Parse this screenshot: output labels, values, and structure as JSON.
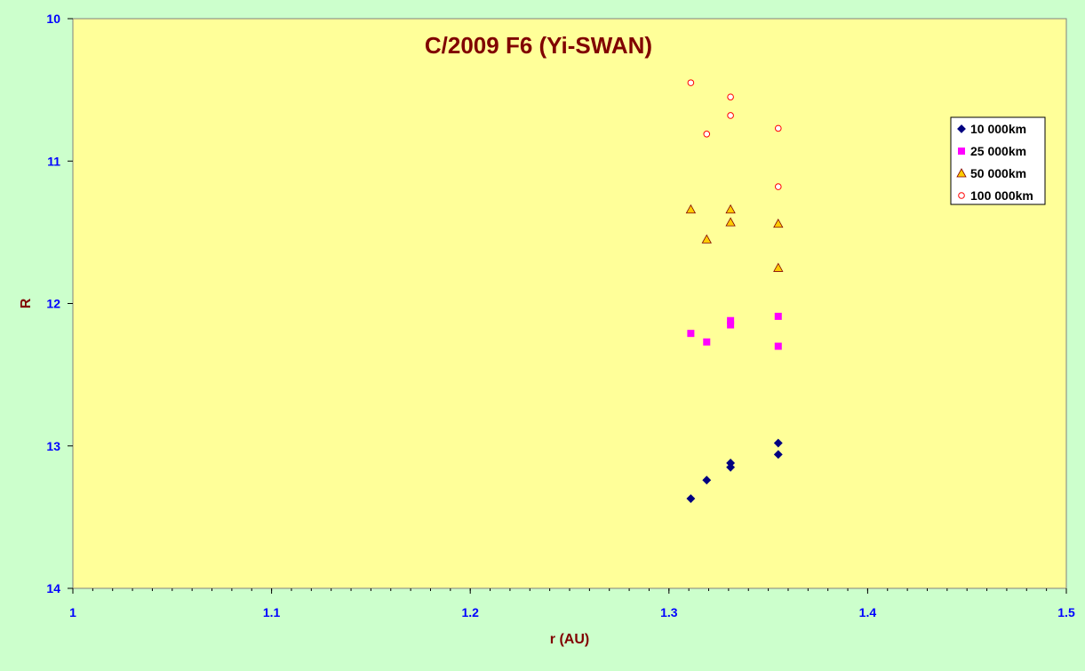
{
  "chart_data": {
    "type": "scatter",
    "title": "C/2009 F6 (Yi-SWAN)",
    "xlabel": "r (AU)",
    "ylabel": "R",
    "xlim": [
      1,
      1.5
    ],
    "ylim": [
      10,
      14
    ],
    "y_inverted": true,
    "x_ticks": [
      1,
      1.1,
      1.2,
      1.3,
      1.4,
      1.5
    ],
    "x_tick_labels": [
      "1",
      "1.1",
      "1.2",
      "1.3",
      "1.4",
      "1.5"
    ],
    "y_ticks": [
      10,
      11,
      12,
      13,
      14
    ],
    "y_tick_labels": [
      "10",
      "11",
      "12",
      "13",
      "14"
    ],
    "x_minor_step": 0.01,
    "grid": false,
    "legend_position": "top-right",
    "colors": {
      "page_bg": "#ccffcc",
      "plot_bg": "#ffff99",
      "title": "#800000",
      "axis_title": "#800000",
      "tick_label": "#0000ff"
    },
    "series": [
      {
        "name": "10 000km",
        "marker": "diamond",
        "color": "#000080",
        "points": [
          [
            1.311,
            13.37
          ],
          [
            1.319,
            13.24
          ],
          [
            1.331,
            13.12
          ],
          [
            1.331,
            13.15
          ],
          [
            1.355,
            12.98
          ],
          [
            1.355,
            13.06
          ]
        ]
      },
      {
        "name": "25 000km",
        "marker": "square",
        "color": "#ff00ff",
        "points": [
          [
            1.311,
            12.21
          ],
          [
            1.319,
            12.27
          ],
          [
            1.331,
            12.12
          ],
          [
            1.331,
            12.15
          ],
          [
            1.355,
            12.09
          ],
          [
            1.355,
            12.3
          ]
        ]
      },
      {
        "name": "50 000km",
        "marker": "triangle",
        "color": "#ffcc00",
        "points": [
          [
            1.311,
            11.34
          ],
          [
            1.319,
            11.55
          ],
          [
            1.331,
            11.34
          ],
          [
            1.331,
            11.43
          ],
          [
            1.355,
            11.44
          ],
          [
            1.355,
            11.75
          ]
        ]
      },
      {
        "name": "100 000km",
        "marker": "circle",
        "color": "#ff0000",
        "points": [
          [
            1.311,
            10.45
          ],
          [
            1.319,
            10.81
          ],
          [
            1.331,
            10.55
          ],
          [
            1.331,
            10.68
          ],
          [
            1.355,
            10.77
          ],
          [
            1.355,
            11.18
          ]
        ]
      }
    ]
  }
}
